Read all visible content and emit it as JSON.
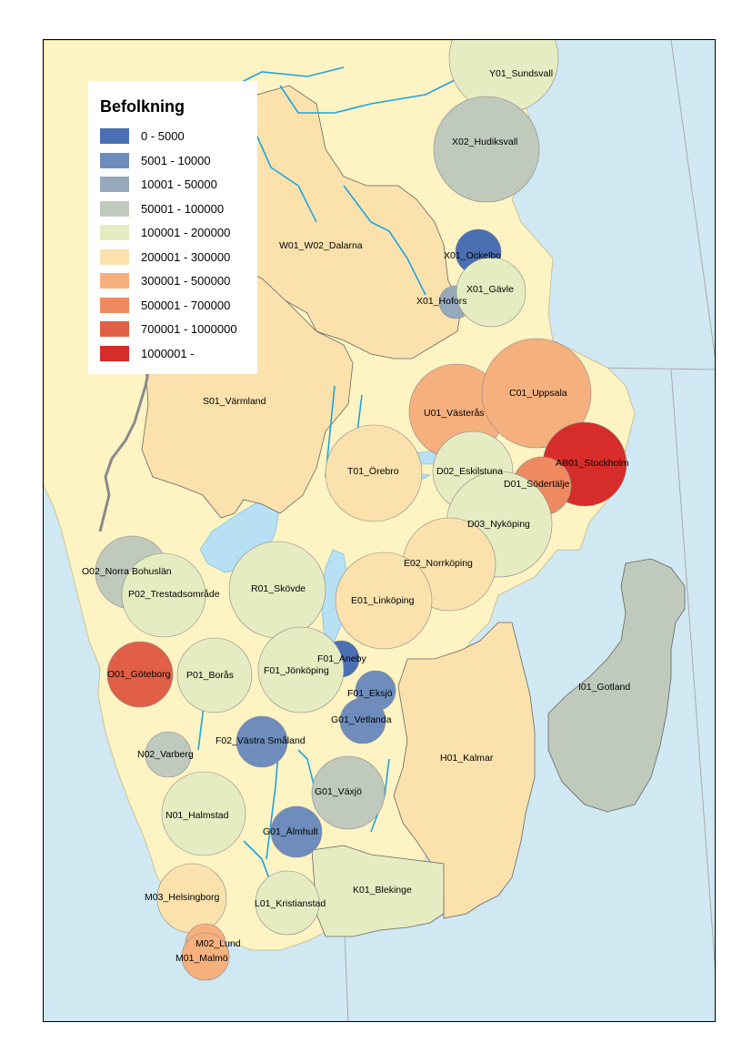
{
  "legend": {
    "title": "Befolkning",
    "classes": [
      {
        "label": "0 - 5000",
        "color": "#4a6fb3"
      },
      {
        "label": "5001 - 10000",
        "color": "#6e8dbd"
      },
      {
        "label": "10001 - 50000",
        "color": "#96a9bc"
      },
      {
        "label": "50001 - 100000",
        "color": "#bfcabc"
      },
      {
        "label": "100001 - 200000",
        "color": "#e6ecc1"
      },
      {
        "label": "200001 - 300000",
        "color": "#fbe2ad"
      },
      {
        "label": "300001 - 500000",
        "color": "#f6b07e"
      },
      {
        "label": "500001 - 700000",
        "color": "#ef8a60"
      },
      {
        "label": "700001 - 1000000",
        "color": "#e25f47"
      },
      {
        "label": "1000001 -",
        "color": "#d72d2a"
      }
    ]
  },
  "colors": {
    "water": "#cfe8f2",
    "land": "#fdf3c3",
    "river": "#1fa3e0",
    "lake": "#b7e0f4",
    "border": "#777777"
  },
  "regions": [
    {
      "name": "W01_W02_Dalarna",
      "class": 5
    },
    {
      "name": "S01_Värmland",
      "class": 5
    },
    {
      "name": "H01_Kalmar",
      "class": 5
    },
    {
      "name": "K01_Blekinge",
      "class": 4
    },
    {
      "name": "I01_Gotland",
      "class": 3
    }
  ],
  "circles": [
    {
      "name": "Y01_Sundsvall",
      "class": 4
    },
    {
      "name": "X02_Hudiksvall",
      "class": 3
    },
    {
      "name": "X01_Ockelbo",
      "class": 0
    },
    {
      "name": "X01_Hofors",
      "class": 2
    },
    {
      "name": "X01_Gävle",
      "class": 4
    },
    {
      "name": "U01_Västerås",
      "class": 6
    },
    {
      "name": "C01_Uppsala",
      "class": 6
    },
    {
      "name": "T01_Örebro",
      "class": 5
    },
    {
      "name": "D02_Eskilstuna",
      "class": 4
    },
    {
      "name": "AB01_Stockholm",
      "class": 9
    },
    {
      "name": "D01_Södertälje",
      "class": 7
    },
    {
      "name": "D03_Nyköping",
      "class": 4
    },
    {
      "name": "E02_Norrköping",
      "class": 5
    },
    {
      "name": "E01_Linköping",
      "class": 5
    },
    {
      "name": "O02_Norra Bohuslän",
      "class": 3
    },
    {
      "name": "P02_Trestadsområde",
      "class": 4
    },
    {
      "name": "R01_Skövde",
      "class": 4
    },
    {
      "name": "F01_Aneby",
      "class": 0
    },
    {
      "name": "F01_Jönköping",
      "class": 4
    },
    {
      "name": "O01_Göteborg",
      "class": 8
    },
    {
      "name": "P01_Borås",
      "class": 4
    },
    {
      "name": "F01_Eksjö",
      "class": 1
    },
    {
      "name": "G01_Vetlanda",
      "class": 1
    },
    {
      "name": "F02_Västra Småland",
      "class": 1
    },
    {
      "name": "N02_Varberg",
      "class": 3
    },
    {
      "name": "G01_Växjö",
      "class": 3
    },
    {
      "name": "N01_Halmstad",
      "class": 4
    },
    {
      "name": "G01_Älmhult",
      "class": 1
    },
    {
      "name": "M03_Helsingborg",
      "class": 5
    },
    {
      "name": "L01_Kristianstad",
      "class": 4
    },
    {
      "name": "M02_Lund",
      "class": 6
    },
    {
      "name": "M01_Malmö",
      "class": 6
    }
  ]
}
